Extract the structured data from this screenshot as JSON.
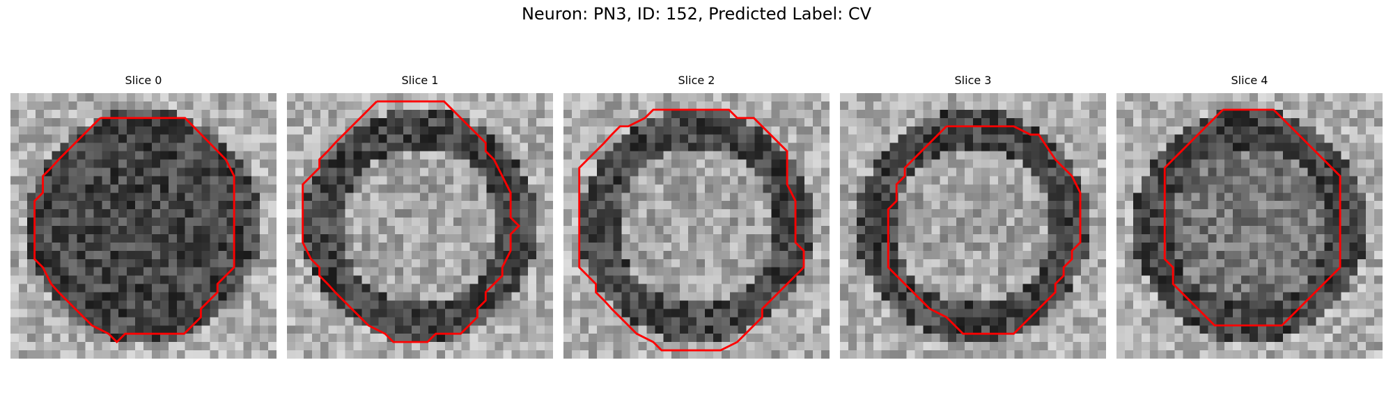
{
  "title": "Neuron: PN3, ID: 152, Predicted Label: CV",
  "contour_color": "#ff0000",
  "image": {
    "grid_size": 32,
    "colormap": "gray"
  },
  "slices": [
    {
      "label": "Slice 0",
      "ring_brightness": "dark",
      "interior": "dark"
    },
    {
      "label": "Slice 1",
      "ring_brightness": "dark",
      "interior": "light"
    },
    {
      "label": "Slice 2",
      "ring_brightness": "dark",
      "interior": "light"
    },
    {
      "label": "Slice 3",
      "ring_brightness": "dark",
      "interior": "light"
    },
    {
      "label": "Slice 4",
      "ring_brightness": "dark",
      "interior": "mid"
    }
  ]
}
